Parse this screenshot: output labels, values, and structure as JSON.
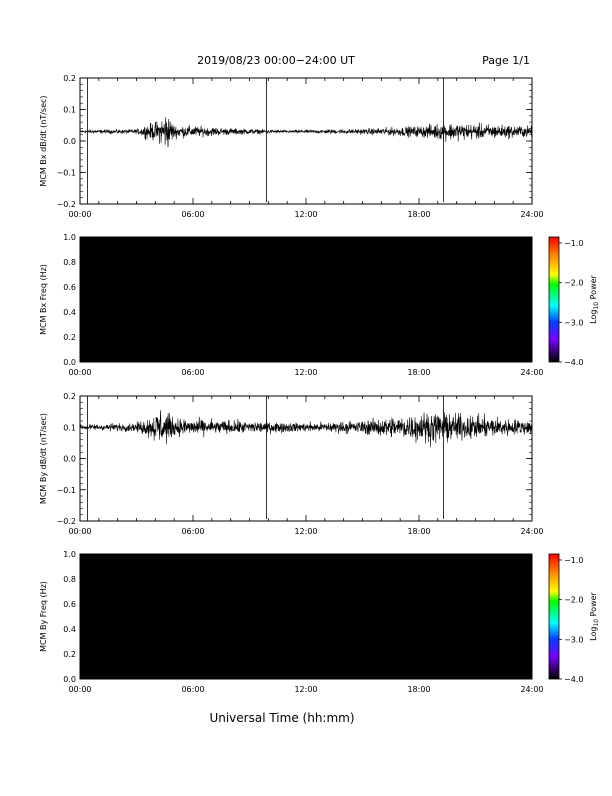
{
  "header": {
    "title": "2019/08/23  00:00−24:00 UT",
    "page": "Page 1/1"
  },
  "xaxis_label": "Universal Time (hh:mm)",
  "time_ticks": [
    "00:00",
    "06:00",
    "12:00",
    "18:00",
    "24:00"
  ],
  "colorbar": {
    "label_main": "Log",
    "label_sub": "10",
    "label_tail": " Power",
    "ticks": [
      "−1.0",
      "−2.0",
      "−3.0",
      "−4.0"
    ],
    "colors": [
      "#ff0000",
      "#ff8000",
      "#ffff00",
      "#00ff00",
      "#00ffff",
      "#0040ff",
      "#8000ff",
      "#000000"
    ]
  },
  "chart_data": [
    {
      "type": "line",
      "ylabel": "MCM Bx dB/dt (nT/sec)",
      "ylim": [
        -0.2,
        0.2
      ],
      "yticks": [
        "0.2",
        "0.1",
        "0.0",
        "−0.1",
        "−0.2"
      ],
      "xlim_hours": [
        0,
        24
      ],
      "baseline": 0.03,
      "noise_envelope": [
        {
          "x": 0,
          "amp": 0.008
        },
        {
          "x": 3.0,
          "amp": 0.01
        },
        {
          "x": 3.5,
          "amp": 0.03
        },
        {
          "x": 4.2,
          "amp": 0.05
        },
        {
          "x": 4.6,
          "amp": 0.09
        },
        {
          "x": 5.0,
          "amp": 0.03
        },
        {
          "x": 8.0,
          "amp": 0.015
        },
        {
          "x": 11.0,
          "amp": 0.006
        },
        {
          "x": 15.0,
          "amp": 0.012
        },
        {
          "x": 18.0,
          "amp": 0.025
        },
        {
          "x": 19.5,
          "amp": 0.04
        },
        {
          "x": 24.0,
          "amp": 0.025
        }
      ],
      "spikes_hours": [
        0.4,
        9.9,
        19.3
      ]
    },
    {
      "type": "heatmap",
      "ylabel": "MCM Bx Freq (Hz)",
      "ylim": [
        0.0,
        1.0
      ],
      "yticks": [
        "1.0",
        "0.8",
        "0.6",
        "0.4",
        "0.2",
        "0.0"
      ],
      "xlim_hours": [
        0,
        24
      ],
      "colorscale_range": [
        -4.0,
        -1.0
      ]
    },
    {
      "type": "line",
      "ylabel": "MCM By dB/dt (nT/sec)",
      "ylim": [
        -0.2,
        0.2
      ],
      "yticks": [
        "0.2",
        "0.1",
        "0.0",
        "−0.1",
        "−0.2"
      ],
      "xlim_hours": [
        0,
        24
      ],
      "baseline": 0.1,
      "noise_envelope": [
        {
          "x": 0,
          "amp": 0.012
        },
        {
          "x": 3.0,
          "amp": 0.02
        },
        {
          "x": 3.8,
          "amp": 0.05
        },
        {
          "x": 4.3,
          "amp": 0.09
        },
        {
          "x": 5.0,
          "amp": 0.04
        },
        {
          "x": 8.0,
          "amp": 0.03
        },
        {
          "x": 12.0,
          "amp": 0.02
        },
        {
          "x": 15.0,
          "amp": 0.03
        },
        {
          "x": 18.5,
          "amp": 0.07
        },
        {
          "x": 20.0,
          "amp": 0.06
        },
        {
          "x": 24.0,
          "amp": 0.03
        }
      ],
      "spikes_hours": [
        0.4,
        9.9,
        19.3
      ]
    },
    {
      "type": "heatmap",
      "ylabel": "MCM By Freq (Hz)",
      "ylim": [
        0.0,
        1.0
      ],
      "yticks": [
        "1.0",
        "0.8",
        "0.6",
        "0.4",
        "0.2",
        "0.0"
      ],
      "xlim_hours": [
        0,
        24
      ],
      "colorscale_range": [
        -4.0,
        -1.0
      ]
    }
  ]
}
